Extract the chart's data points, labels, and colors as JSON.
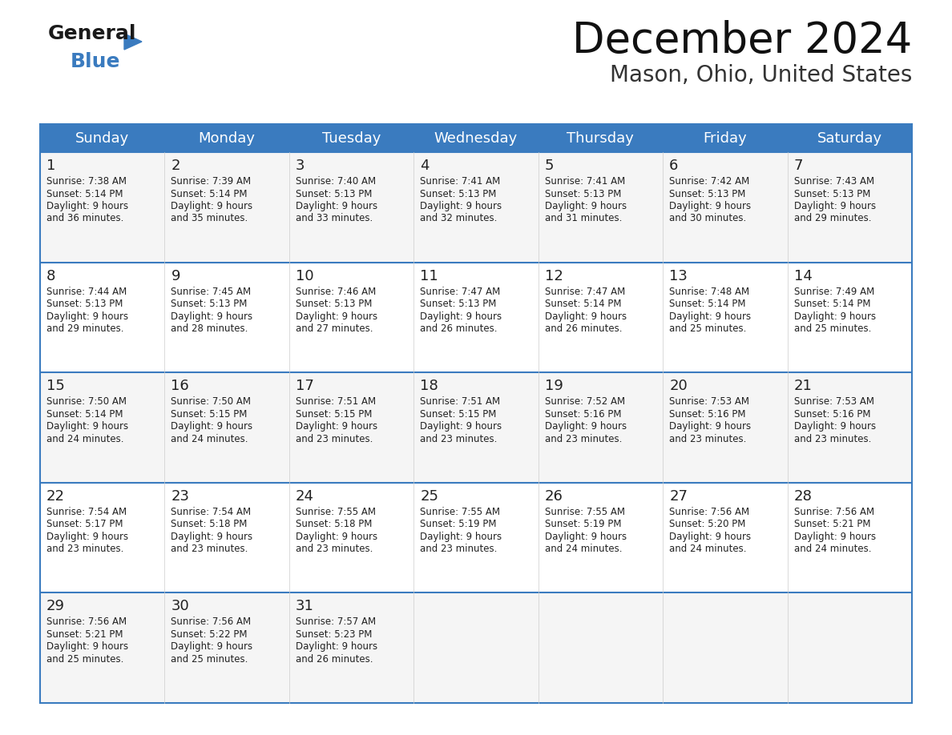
{
  "title": "December 2024",
  "subtitle": "Mason, Ohio, United States",
  "header_color": "#3a7bbf",
  "header_text_color": "#ffffff",
  "cell_bg_color": "#f5f5f5",
  "cell_alt_bg_color": "#ffffff",
  "border_color": "#3a7bbf",
  "text_color": "#222222",
  "days_of_week": [
    "Sunday",
    "Monday",
    "Tuesday",
    "Wednesday",
    "Thursday",
    "Friday",
    "Saturday"
  ],
  "weeks": [
    [
      {
        "day": 1,
        "sunrise": "7:38 AM",
        "sunset": "5:14 PM",
        "daylight": "9 hours and 36 minutes."
      },
      {
        "day": 2,
        "sunrise": "7:39 AM",
        "sunset": "5:14 PM",
        "daylight": "9 hours and 35 minutes."
      },
      {
        "day": 3,
        "sunrise": "7:40 AM",
        "sunset": "5:13 PM",
        "daylight": "9 hours and 33 minutes."
      },
      {
        "day": 4,
        "sunrise": "7:41 AM",
        "sunset": "5:13 PM",
        "daylight": "9 hours and 32 minutes."
      },
      {
        "day": 5,
        "sunrise": "7:41 AM",
        "sunset": "5:13 PM",
        "daylight": "9 hours and 31 minutes."
      },
      {
        "day": 6,
        "sunrise": "7:42 AM",
        "sunset": "5:13 PM",
        "daylight": "9 hours and 30 minutes."
      },
      {
        "day": 7,
        "sunrise": "7:43 AM",
        "sunset": "5:13 PM",
        "daylight": "9 hours and 29 minutes."
      }
    ],
    [
      {
        "day": 8,
        "sunrise": "7:44 AM",
        "sunset": "5:13 PM",
        "daylight": "9 hours and 29 minutes."
      },
      {
        "day": 9,
        "sunrise": "7:45 AM",
        "sunset": "5:13 PM",
        "daylight": "9 hours and 28 minutes."
      },
      {
        "day": 10,
        "sunrise": "7:46 AM",
        "sunset": "5:13 PM",
        "daylight": "9 hours and 27 minutes."
      },
      {
        "day": 11,
        "sunrise": "7:47 AM",
        "sunset": "5:13 PM",
        "daylight": "9 hours and 26 minutes."
      },
      {
        "day": 12,
        "sunrise": "7:47 AM",
        "sunset": "5:14 PM",
        "daylight": "9 hours and 26 minutes."
      },
      {
        "day": 13,
        "sunrise": "7:48 AM",
        "sunset": "5:14 PM",
        "daylight": "9 hours and 25 minutes."
      },
      {
        "day": 14,
        "sunrise": "7:49 AM",
        "sunset": "5:14 PM",
        "daylight": "9 hours and 25 minutes."
      }
    ],
    [
      {
        "day": 15,
        "sunrise": "7:50 AM",
        "sunset": "5:14 PM",
        "daylight": "9 hours and 24 minutes."
      },
      {
        "day": 16,
        "sunrise": "7:50 AM",
        "sunset": "5:15 PM",
        "daylight": "9 hours and 24 minutes."
      },
      {
        "day": 17,
        "sunrise": "7:51 AM",
        "sunset": "5:15 PM",
        "daylight": "9 hours and 23 minutes."
      },
      {
        "day": 18,
        "sunrise": "7:51 AM",
        "sunset": "5:15 PM",
        "daylight": "9 hours and 23 minutes."
      },
      {
        "day": 19,
        "sunrise": "7:52 AM",
        "sunset": "5:16 PM",
        "daylight": "9 hours and 23 minutes."
      },
      {
        "day": 20,
        "sunrise": "7:53 AM",
        "sunset": "5:16 PM",
        "daylight": "9 hours and 23 minutes."
      },
      {
        "day": 21,
        "sunrise": "7:53 AM",
        "sunset": "5:16 PM",
        "daylight": "9 hours and 23 minutes."
      }
    ],
    [
      {
        "day": 22,
        "sunrise": "7:54 AM",
        "sunset": "5:17 PM",
        "daylight": "9 hours and 23 minutes."
      },
      {
        "day": 23,
        "sunrise": "7:54 AM",
        "sunset": "5:18 PM",
        "daylight": "9 hours and 23 minutes."
      },
      {
        "day": 24,
        "sunrise": "7:55 AM",
        "sunset": "5:18 PM",
        "daylight": "9 hours and 23 minutes."
      },
      {
        "day": 25,
        "sunrise": "7:55 AM",
        "sunset": "5:19 PM",
        "daylight": "9 hours and 23 minutes."
      },
      {
        "day": 26,
        "sunrise": "7:55 AM",
        "sunset": "5:19 PM",
        "daylight": "9 hours and 24 minutes."
      },
      {
        "day": 27,
        "sunrise": "7:56 AM",
        "sunset": "5:20 PM",
        "daylight": "9 hours and 24 minutes."
      },
      {
        "day": 28,
        "sunrise": "7:56 AM",
        "sunset": "5:21 PM",
        "daylight": "9 hours and 24 minutes."
      }
    ],
    [
      {
        "day": 29,
        "sunrise": "7:56 AM",
        "sunset": "5:21 PM",
        "daylight": "9 hours and 25 minutes."
      },
      {
        "day": 30,
        "sunrise": "7:56 AM",
        "sunset": "5:22 PM",
        "daylight": "9 hours and 25 minutes."
      },
      {
        "day": 31,
        "sunrise": "7:57 AM",
        "sunset": "5:23 PM",
        "daylight": "9 hours and 26 minutes."
      },
      null,
      null,
      null,
      null
    ]
  ],
  "logo_text_general": "General",
  "logo_text_blue": "Blue",
  "logo_color_general": "#1a1a1a",
  "logo_color_blue": "#3a7bbf"
}
